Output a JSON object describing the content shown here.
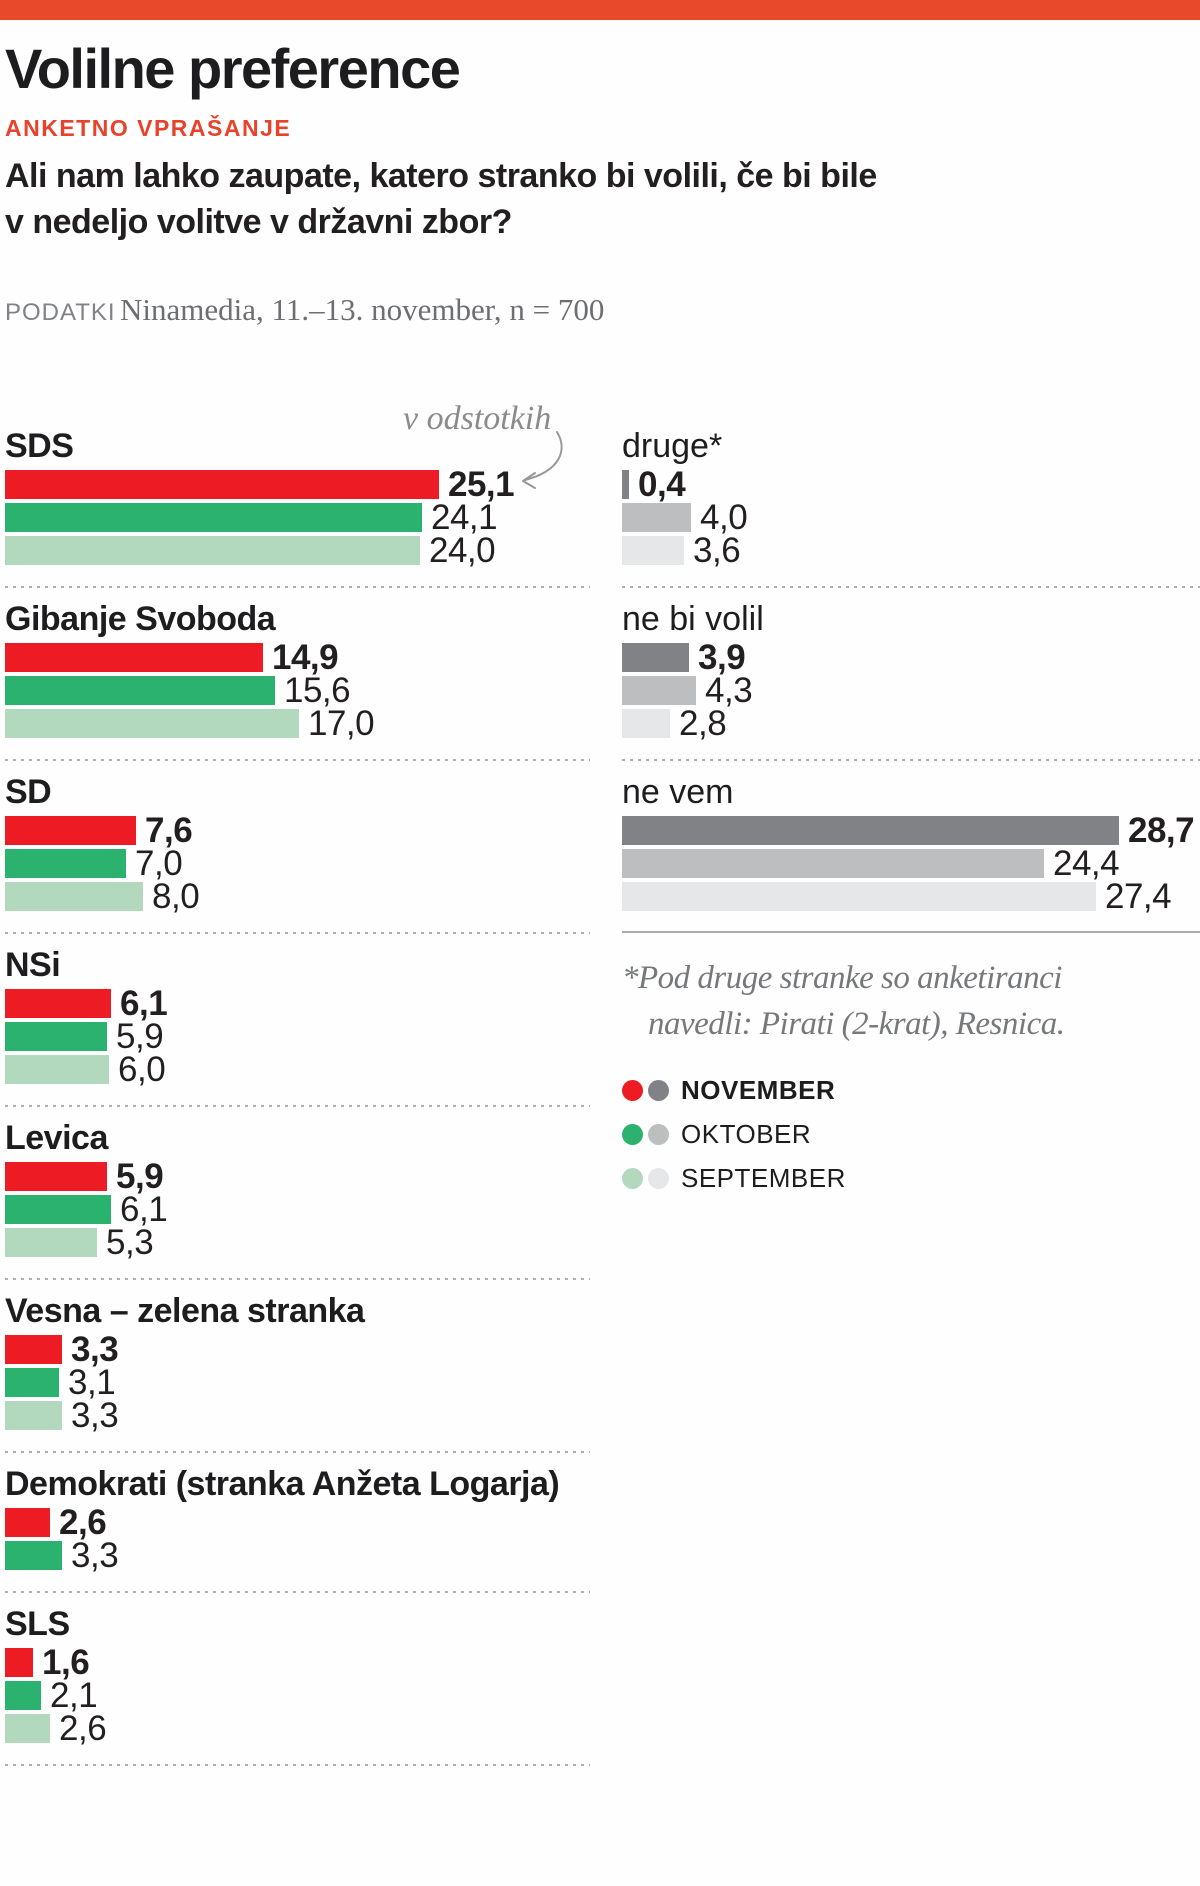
{
  "header": {
    "title": "Volilne preference",
    "kicker": "ANKETNO VPRAŠANJE",
    "question_line1": "Ali nam lahko zaupate, katero stranko bi volili, če bi bile",
    "question_line2": "v nedeljo volitve v državni zbor?",
    "source_label": "PODATKI",
    "source_text": "Ninamedia, 11.–13. november, n = 700"
  },
  "chart_data": {
    "type": "bar",
    "orientation": "horizontal",
    "unit_annotation": "v odstotkih",
    "value_range": [
      0,
      30
    ],
    "series": [
      "NOVEMBER",
      "OKTOBER",
      "SEPTEMBER"
    ],
    "party_groups": [
      {
        "name": "SDS",
        "values": [
          {
            "display": "25,1",
            "value": 25.1
          },
          {
            "display": "24,1",
            "value": 24.1
          },
          {
            "display": "24,0",
            "value": 24.0
          }
        ]
      },
      {
        "name": "Gibanje Svoboda",
        "values": [
          {
            "display": "14,9",
            "value": 14.9
          },
          {
            "display": "15,6",
            "value": 15.6
          },
          {
            "display": "17,0",
            "value": 17.0
          }
        ]
      },
      {
        "name": "SD",
        "values": [
          {
            "display": "7,6",
            "value": 7.6
          },
          {
            "display": "7,0",
            "value": 7.0
          },
          {
            "display": "8,0",
            "value": 8.0
          }
        ]
      },
      {
        "name": "NSi",
        "values": [
          {
            "display": "6,1",
            "value": 6.1
          },
          {
            "display": "5,9",
            "value": 5.9
          },
          {
            "display": "6,0",
            "value": 6.0
          }
        ]
      },
      {
        "name": "Levica",
        "values": [
          {
            "display": "5,9",
            "value": 5.9
          },
          {
            "display": "6,1",
            "value": 6.1
          },
          {
            "display": "5,3",
            "value": 5.3
          }
        ]
      },
      {
        "name": "Vesna – zelena stranka",
        "values": [
          {
            "display": "3,3",
            "value": 3.3
          },
          {
            "display": "3,1",
            "value": 3.1
          },
          {
            "display": "3,3",
            "value": 3.3
          }
        ]
      },
      {
        "name": "Demokrati (stranka Anžeta Logarja)",
        "values": [
          {
            "display": "2,6",
            "value": 2.6
          },
          {
            "display": "3,3",
            "value": 3.3
          }
        ]
      },
      {
        "name": "SLS",
        "values": [
          {
            "display": "1,6",
            "value": 1.6
          },
          {
            "display": "2,1",
            "value": 2.1
          },
          {
            "display": "2,6",
            "value": 2.6
          }
        ]
      }
    ],
    "other_groups": [
      {
        "name": "druge*",
        "values": [
          {
            "display": "0,4",
            "value": 0.4
          },
          {
            "display": "4,0",
            "value": 4.0
          },
          {
            "display": "3,6",
            "value": 3.6
          }
        ]
      },
      {
        "name": "ne bi volil",
        "values": [
          {
            "display": "3,9",
            "value": 3.9
          },
          {
            "display": "4,3",
            "value": 4.3
          },
          {
            "display": "2,8",
            "value": 2.8
          }
        ]
      },
      {
        "name": "ne vem",
        "values": [
          {
            "display": "28,7",
            "value": 28.7
          },
          {
            "display": "24,4",
            "value": 24.4
          },
          {
            "display": "27,4",
            "value": 27.4
          }
        ]
      }
    ],
    "footnote_line1": "*Pod druge stranke so anketiranci",
    "footnote_line2": "navedli: Pirati (2-krat), Resnica.",
    "legend": [
      {
        "label": "NOVEMBER",
        "party_color": "#ed1c24",
        "neutral_color": "#808285",
        "bold": true
      },
      {
        "label": "OKTOBER",
        "party_color": "#2bb26e",
        "neutral_color": "#bcbec0",
        "bold": false
      },
      {
        "label": "SEPTEMBER",
        "party_color": "#b2d8be",
        "neutral_color": "#e6e7e8",
        "bold": false
      }
    ]
  },
  "colors": {
    "accent": "#e8492b",
    "november_party": "#ed1c24",
    "oktober_party": "#2bb26e",
    "september_party": "#b2d8be",
    "november_neutral": "#808285",
    "oktober_neutral": "#bcbec0",
    "september_neutral": "#e6e7e8"
  }
}
